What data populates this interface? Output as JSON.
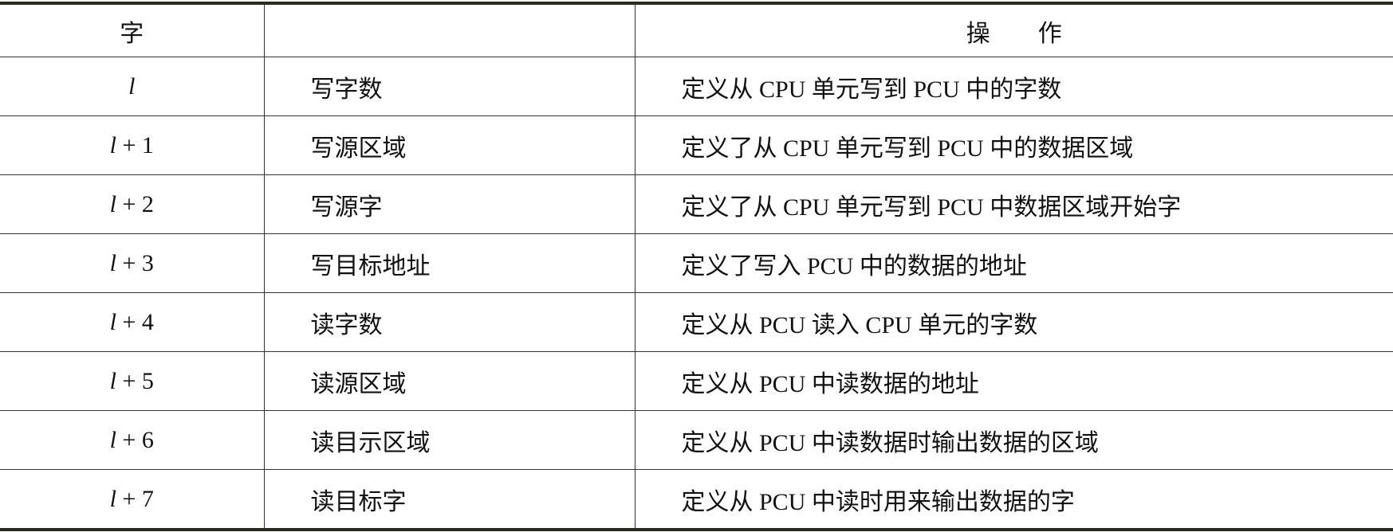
{
  "header": {
    "col1": "字",
    "col2": "",
    "col3": "操作"
  },
  "rows": [
    {
      "word": "l",
      "offset": "",
      "name": "写字数",
      "operation": "定义从 CPU 单元写到 PCU 中的字数"
    },
    {
      "word": "l",
      "offset": " + 1",
      "name": "写源区域",
      "operation": "定义了从 CPU 单元写到 PCU 中的数据区域"
    },
    {
      "word": "l",
      "offset": " + 2",
      "name": "写源字",
      "operation": "定义了从 CPU 单元写到 PCU 中数据区域开始字"
    },
    {
      "word": "l",
      "offset": " + 3",
      "name": "写目标地址",
      "operation": "定义了写入 PCU 中的数据的地址"
    },
    {
      "word": "l",
      "offset": " + 4",
      "name": "读字数",
      "operation": "定义从 PCU 读入 CPU 单元的字数"
    },
    {
      "word": "l",
      "offset": " + 5",
      "name": "读源区域",
      "operation": "定义从 PCU 中读数据的地址"
    },
    {
      "word": "l",
      "offset": " + 6",
      "name": "读目示区域",
      "operation": "定义从 PCU 中读数据时输出数据的区域"
    },
    {
      "word": "l",
      "offset": " + 7",
      "name": "读目标字",
      "operation": "定义从 PCU 中读时用来输出数据的字"
    }
  ]
}
